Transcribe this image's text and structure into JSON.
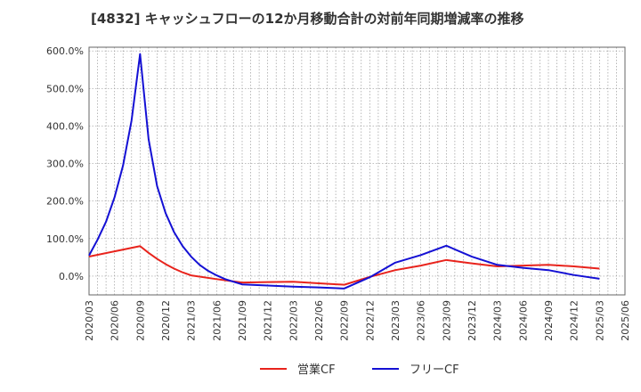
{
  "chart_data": {
    "type": "line",
    "title": "[4832]  キャッシュフローの12か月移動合計の対前年同期増減率の推移",
    "xlabel": "",
    "ylabel": "",
    "ylim": [
      -50,
      610
    ],
    "yticks": [
      0,
      100,
      200,
      300,
      400,
      500,
      600
    ],
    "ytick_labels": [
      "0.0%",
      "100.0%",
      "200.0%",
      "300.0%",
      "400.0%",
      "500.0%",
      "600.0%"
    ],
    "xtick_labels": [
      "2020/03",
      "2020/06",
      "2020/09",
      "2020/12",
      "2021/03",
      "2021/06",
      "2021/09",
      "2021/12",
      "2022/03",
      "2022/06",
      "2022/09",
      "2022/12",
      "2023/03",
      "2023/06",
      "2023/09",
      "2023/12",
      "2024/03",
      "2024/06",
      "2024/09",
      "2024/12",
      "2025/03",
      "2025/06"
    ],
    "grid": true,
    "legend_position": "bottom-center",
    "series": [
      {
        "name": "営業CF",
        "color": "#e8231c",
        "points": [
          [
            0,
            52
          ],
          [
            3,
            66
          ],
          [
            6,
            80
          ],
          [
            7,
            62
          ],
          [
            8,
            46
          ],
          [
            9,
            32
          ],
          [
            10,
            20
          ],
          [
            11,
            10
          ],
          [
            12,
            2
          ],
          [
            15,
            -8
          ],
          [
            18,
            -17
          ],
          [
            21,
            -16
          ],
          [
            24,
            -15
          ],
          [
            27,
            -19
          ],
          [
            30,
            -23
          ],
          [
            33,
            -2
          ],
          [
            36,
            16
          ],
          [
            39,
            28
          ],
          [
            42,
            43
          ],
          [
            45,
            34
          ],
          [
            48,
            26
          ],
          [
            51,
            28
          ],
          [
            54,
            30
          ],
          [
            57,
            26
          ],
          [
            60,
            20
          ]
        ]
      },
      {
        "name": "フリーCF",
        "color": "#1410d4",
        "points": [
          [
            0,
            55
          ],
          [
            1,
            97
          ],
          [
            2,
            145
          ],
          [
            3,
            210
          ],
          [
            4,
            295
          ],
          [
            5,
            415
          ],
          [
            6,
            592
          ],
          [
            7,
            365
          ],
          [
            8,
            240
          ],
          [
            9,
            168
          ],
          [
            10,
            117
          ],
          [
            11,
            80
          ],
          [
            12,
            52
          ],
          [
            13,
            30
          ],
          [
            14,
            14
          ],
          [
            15,
            2
          ],
          [
            16,
            -8
          ],
          [
            18,
            -22
          ],
          [
            21,
            -25
          ],
          [
            24,
            -28
          ],
          [
            27,
            -30
          ],
          [
            30,
            -33
          ],
          [
            33,
            -3
          ],
          [
            36,
            36
          ],
          [
            39,
            56
          ],
          [
            42,
            81
          ],
          [
            45,
            52
          ],
          [
            48,
            30
          ],
          [
            51,
            22
          ],
          [
            54,
            16
          ],
          [
            57,
            3
          ],
          [
            60,
            -7
          ]
        ]
      }
    ]
  }
}
